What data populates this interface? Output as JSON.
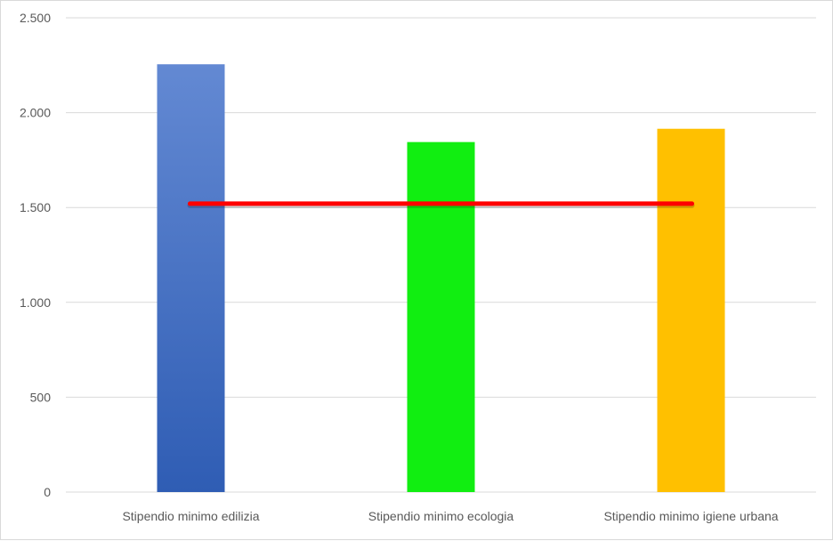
{
  "chart_data": {
    "type": "bar",
    "categories": [
      "Stipendio minimo edilizia",
      "Stipendio minimo ecologia",
      "Stipendio minimo igiene urbana"
    ],
    "values": [
      2255,
      1845,
      1915
    ],
    "reference_line": {
      "value": 1520,
      "color": "#ff0000"
    },
    "bar_colors": [
      "#3f6cc7",
      "#11ee11",
      "#ffc000"
    ],
    "bar_gradient_first": [
      "#6389d3",
      "#2f5db4"
    ],
    "ylim": [
      0,
      2500
    ],
    "y_ticks": [
      0,
      500,
      1000,
      1500,
      2000,
      2500
    ],
    "y_tick_labels": [
      "0",
      "500",
      "1.000",
      "1.500",
      "2.000",
      "2.500"
    ],
    "grid": true,
    "title": "",
    "xlabel": "",
    "ylabel": ""
  }
}
